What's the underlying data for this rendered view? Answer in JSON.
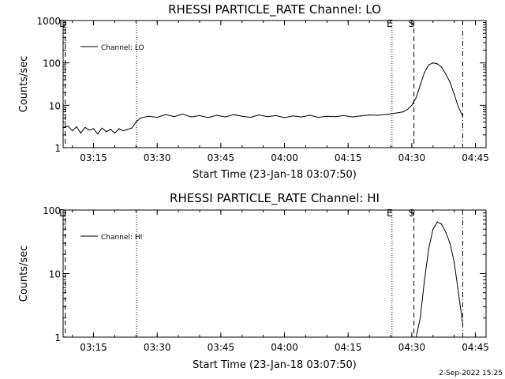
{
  "footer_date": "2-Sep-2022 15:25",
  "chart_data": [
    {
      "type": "line",
      "title": "RHESSI PARTICLE_RATE Channel: LO",
      "xlabel": "Start Time (23-Jan-18 03:07:50)",
      "ylabel": "Counts/sec",
      "yscale": "log",
      "ylim": [
        1,
        1000
      ],
      "xlim": [
        "03:07:50",
        "04:47:30"
      ],
      "xticks": [
        "03:15",
        "03:30",
        "03:45",
        "04:00",
        "04:15",
        "04:30",
        "04:45"
      ],
      "yticks": [
        "1",
        "10",
        "100",
        "1000"
      ],
      "legend": "Channel: LO",
      "legend_position": "top-left",
      "markers": [
        {
          "label": "D",
          "time": "03:08:20",
          "style": "dashed"
        },
        {
          "label": "",
          "time": "03:25:10",
          "style": "dotted"
        },
        {
          "label": "E",
          "time": "04:25:20",
          "style": "dotted"
        },
        {
          "label": "S",
          "time": "04:30:30",
          "style": "dashed"
        },
        {
          "label": "",
          "time": "04:42:00",
          "style": "dashdot"
        }
      ],
      "series": [
        {
          "name": "Channel: LO",
          "x": [
            "03:08:00",
            "03:09:00",
            "03:10:00",
            "03:11:00",
            "03:12:00",
            "03:13:00",
            "03:14:00",
            "03:15:00",
            "03:16:00",
            "03:17:00",
            "03:18:00",
            "03:19:00",
            "03:20:00",
            "03:21:00",
            "03:22:00",
            "03:23:00",
            "03:24:00",
            "03:25:00",
            "03:26:00",
            "03:28:00",
            "03:30:00",
            "03:32:00",
            "03:34:00",
            "03:36:00",
            "03:38:00",
            "03:40:00",
            "03:42:00",
            "03:44:00",
            "03:46:00",
            "03:48:00",
            "03:50:00",
            "03:52:00",
            "03:54:00",
            "03:56:00",
            "03:58:00",
            "04:00:00",
            "04:02:00",
            "04:04:00",
            "04:06:00",
            "04:08:00",
            "04:10:00",
            "04:12:00",
            "04:14:00",
            "04:16:00",
            "04:18:00",
            "04:20:00",
            "04:22:00",
            "04:24:00",
            "04:26:00",
            "04:28:00",
            "04:29:00",
            "04:30:00",
            "04:31:00",
            "04:32:00",
            "04:33:00",
            "04:34:00",
            "04:35:00",
            "04:36:00",
            "04:37:00",
            "04:38:00",
            "04:39:00",
            "04:40:00",
            "04:41:00",
            "04:42:00"
          ],
          "y": [
            3.0,
            3.2,
            2.5,
            3.1,
            2.2,
            3.0,
            2.6,
            2.8,
            2.1,
            2.9,
            2.4,
            2.7,
            2.2,
            2.8,
            2.5,
            2.7,
            2.9,
            4.0,
            5.0,
            5.5,
            5.2,
            6.0,
            5.4,
            6.2,
            5.3,
            5.7,
            5.1,
            5.8,
            5.3,
            6.0,
            5.5,
            5.2,
            5.9,
            5.4,
            5.7,
            5.1,
            5.6,
            5.3,
            5.8,
            5.2,
            5.5,
            5.4,
            5.7,
            5.3,
            5.6,
            5.9,
            5.8,
            6.1,
            6.5,
            7.0,
            8.0,
            10.0,
            15.0,
            30.0,
            60.0,
            90.0,
            100.0,
            95.0,
            80.0,
            55.0,
            35.0,
            18.0,
            9.0,
            5.5
          ]
        }
      ]
    },
    {
      "type": "line",
      "title": "RHESSI PARTICLE_RATE Channel: HI",
      "xlabel": "Start Time (23-Jan-18 03:07:50)",
      "ylabel": "Counts/sec",
      "yscale": "log",
      "ylim": [
        1,
        100
      ],
      "xlim": [
        "03:07:50",
        "04:47:30"
      ],
      "xticks": [
        "03:15",
        "03:30",
        "03:45",
        "04:00",
        "04:15",
        "04:30",
        "04:45"
      ],
      "yticks": [
        "1",
        "10",
        "100"
      ],
      "legend": "Channel: HI",
      "legend_position": "top-left",
      "markers": [
        {
          "label": "D",
          "time": "03:08:20",
          "style": "dashed"
        },
        {
          "label": "",
          "time": "03:25:10",
          "style": "dotted"
        },
        {
          "label": "E",
          "time": "04:25:20",
          "style": "dotted"
        },
        {
          "label": "S",
          "time": "04:30:30",
          "style": "dashed"
        },
        {
          "label": "",
          "time": "04:42:00",
          "style": "dashdot"
        }
      ],
      "series": [
        {
          "name": "Channel: HI",
          "x": [
            "04:31:00",
            "04:32:00",
            "04:33:00",
            "04:34:00",
            "04:35:00",
            "04:36:00",
            "04:37:00",
            "04:38:00",
            "04:39:00",
            "04:40:00",
            "04:41:00",
            "04:42:00"
          ],
          "y": [
            1.0,
            2.0,
            8.0,
            25.0,
            50.0,
            65.0,
            60.0,
            45.0,
            30.0,
            15.0,
            5.0,
            1.6
          ]
        }
      ]
    }
  ]
}
